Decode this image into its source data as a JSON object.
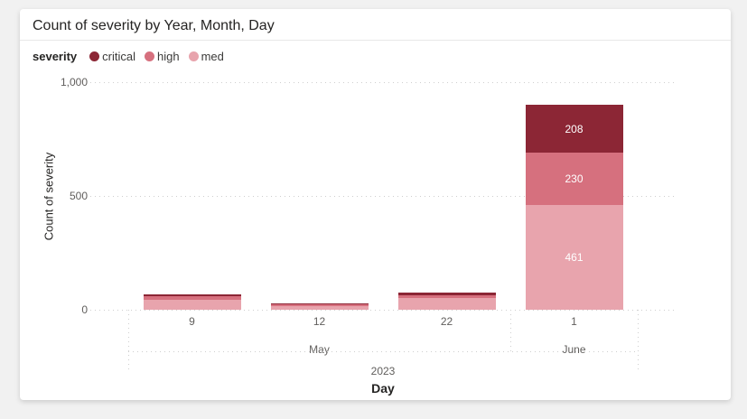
{
  "card": {
    "title": "Count of severity by Year, Month, Day"
  },
  "legend": {
    "title": "severity",
    "items": [
      {
        "label": "critical",
        "color": "#8C2635"
      },
      {
        "label": "high",
        "color": "#D6707E"
      },
      {
        "label": "med",
        "color": "#E8A4AD"
      }
    ]
  },
  "colors": {
    "critical": "#8C2635",
    "high": "#D6707E",
    "med": "#E8A4AD",
    "gridline": "#cfcfcf",
    "axis_text": "#605e5c"
  },
  "y_axis": {
    "title": "Count of severity",
    "tick_labels": [
      "1,000",
      "500",
      "0"
    ],
    "tick_values": [
      1000,
      500,
      0
    ]
  },
  "x_axis": {
    "title": "Day",
    "year": "2023",
    "month_groups": [
      {
        "label": "May",
        "days": [
          "9",
          "12",
          "22"
        ]
      },
      {
        "label": "June",
        "days": [
          "1"
        ]
      }
    ]
  },
  "chart_data": {
    "type": "bar",
    "stacked": true,
    "title": "Count of severity by Year, Month, Day",
    "xlabel": "Day",
    "ylabel": "Count of severity",
    "ylim": [
      0,
      1000
    ],
    "yticks": [
      0,
      500,
      1000
    ],
    "grid": "dotted-horizontal",
    "legend_position": "top",
    "categories": [
      {
        "day": "9",
        "month": "May",
        "year": "2023"
      },
      {
        "day": "12",
        "month": "May",
        "year": "2023"
      },
      {
        "day": "22",
        "month": "May",
        "year": "2023"
      },
      {
        "day": "1",
        "month": "June",
        "year": "2023"
      }
    ],
    "series": [
      {
        "name": "med",
        "color": "#E8A4AD",
        "values": [
          43,
          16,
          51,
          461
        ]
      },
      {
        "name": "high",
        "color": "#D6707E",
        "values": [
          16,
          8,
          12,
          230
        ]
      },
      {
        "name": "critical",
        "color": "#8C2635",
        "values": [
          8,
          4,
          12,
          208
        ]
      }
    ],
    "data_labels_visible": {
      "category": "June 1",
      "med": 461,
      "high": 230,
      "critical": 208
    }
  }
}
